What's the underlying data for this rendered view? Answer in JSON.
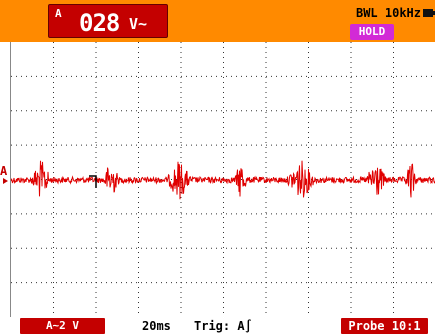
{
  "readout": {
    "channel": "A",
    "value": "028",
    "unit": "V~"
  },
  "status": {
    "bandwidth": "BWL 10kHz",
    "hold": "HOLD",
    "battery_icon": "battery-icon"
  },
  "screen": {
    "channel_marker": "A"
  },
  "bottom": {
    "range": "A~2 V",
    "timebase": "20ms",
    "trigger": "Trig: A∫",
    "probe": "Probe 10:1"
  },
  "colors": {
    "topbar": "#ff8a00",
    "trace": "#e00000",
    "badge_red": "#c40000",
    "hold_magenta": "#d22ad6"
  }
}
